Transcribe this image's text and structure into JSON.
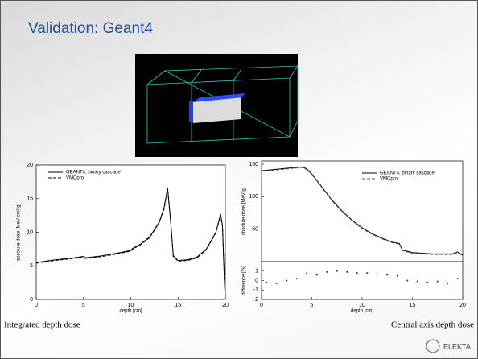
{
  "slide": {
    "title": "Validation: Geant4",
    "captions": [
      "Integrated depth dose",
      "Central axis depth dose"
    ],
    "logo": "ELEKTA"
  },
  "chart_data": [
    {
      "type": "line",
      "xlabel": "depth [cm]",
      "ylabel": "absolute dose [MeV cm²/g]",
      "x": [
        0,
        2,
        4,
        5,
        5.2,
        7,
        9,
        10,
        10.2,
        11,
        12,
        13,
        13.5,
        13.9,
        14.2,
        14.5,
        15,
        16,
        17,
        18,
        19,
        19.5,
        19.7,
        19.9,
        20
      ],
      "series": [
        {
          "name": "GEANT4, binary cascade",
          "color": "#000000",
          "style": "solid",
          "values": [
            5.5,
            5.9,
            6.2,
            6.4,
            6.2,
            6.5,
            7.0,
            7.3,
            7.6,
            8.2,
            9.3,
            11.5,
            13.5,
            16.6,
            12,
            6.5,
            5.8,
            5.9,
            6.3,
            7.5,
            10,
            12.7,
            11,
            3,
            0
          ]
        },
        {
          "name": "VMCpro",
          "color": "#000000",
          "style": "dashed",
          "values": [
            5.4,
            5.8,
            6.1,
            6.3,
            6.1,
            6.4,
            6.9,
            7.2,
            7.5,
            8.1,
            9.2,
            11.4,
            13.3,
            16.4,
            11.8,
            6.4,
            5.7,
            5.8,
            6.2,
            7.4,
            9.9,
            12.5,
            10.8,
            2.8,
            0
          ]
        }
      ],
      "xlim": [
        0,
        20
      ],
      "xticks": [
        0,
        5,
        10,
        15,
        20
      ],
      "ylim": [
        0,
        20
      ],
      "yticks": [
        0,
        5,
        10,
        15,
        20
      ]
    },
    {
      "type": "line",
      "ylabel": "absolute dose [MeV/g]",
      "x": [
        0,
        2,
        4,
        4.5,
        5,
        6,
        7,
        8,
        9,
        10,
        11,
        12,
        13,
        13.7,
        14,
        15,
        17,
        19,
        19.5,
        20
      ],
      "series": [
        {
          "name": "GEANT4, binary cascade",
          "color": "#000000",
          "style": "solid",
          "values": [
            140,
            143,
            146,
            143,
            135,
            115,
            95,
            78,
            64,
            52,
            43,
            36,
            30,
            28,
            18,
            14,
            12,
            12,
            15,
            10
          ]
        },
        {
          "name": "VMCpro",
          "color": "#555555",
          "style": "dashed",
          "values": [
            139,
            142,
            145,
            142,
            134,
            114,
            94,
            77,
            63,
            51,
            42,
            35,
            29,
            27,
            17,
            13,
            11,
            11,
            14,
            9
          ]
        }
      ],
      "xlim": [
        0,
        20
      ],
      "ylim": [
        0,
        155
      ],
      "yticks": [
        50,
        100,
        150
      ]
    },
    {
      "type": "scatter",
      "xlabel": "depth [cm]",
      "ylabel": "difference [%]",
      "x": [
        0.5,
        1.5,
        2.5,
        3.5,
        4.5,
        5.5,
        6.5,
        7.5,
        8.5,
        9.5,
        10.5,
        11.5,
        12.5,
        13.5,
        14.5,
        15.5,
        16.5,
        17.5,
        18.5,
        19.5
      ],
      "values": [
        -0.2,
        -0.3,
        0,
        0.2,
        0.8,
        0.6,
        0.9,
        1.0,
        0.9,
        0.8,
        0.8,
        0.7,
        0.6,
        0.5,
        0,
        -0.1,
        -0.2,
        -0.1,
        -0.3,
        0.2
      ],
      "color": "#333333",
      "xlim": [
        0,
        20
      ],
      "xticks": [
        0,
        5,
        10,
        15,
        20
      ],
      "ylim": [
        -2,
        2
      ],
      "yticks": [
        -2,
        -1,
        0,
        1
      ]
    }
  ]
}
